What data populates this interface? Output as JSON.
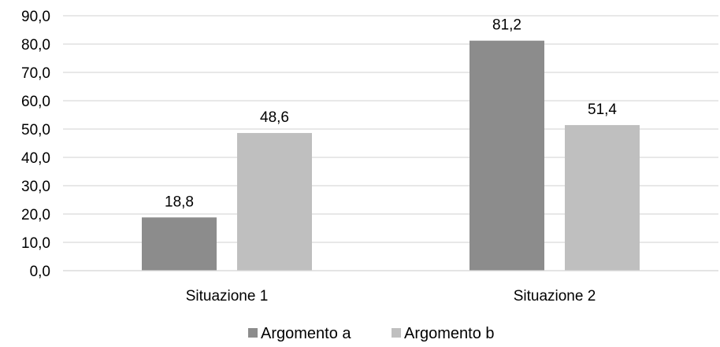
{
  "chart_data": {
    "type": "bar",
    "title": "",
    "xlabel": "",
    "ylabel": "",
    "categories": [
      "Situazione 1",
      "Situazione 2"
    ],
    "series": [
      {
        "name": "Argomento a",
        "values": [
          18.8,
          81.2
        ],
        "labels": [
          "18,8",
          "81,2"
        ],
        "color": "#8c8c8c"
      },
      {
        "name": "Argomento b",
        "values": [
          48.6,
          51.4
        ],
        "labels": [
          "48,6",
          "51,4"
        ],
        "color": "#bfbfbf"
      }
    ],
    "ylim": [
      0,
      90
    ],
    "yticks": [
      0,
      10,
      20,
      30,
      40,
      50,
      60,
      70,
      80,
      90
    ],
    "ytick_labels": [
      "0,0",
      "10,0",
      "20,0",
      "30,0",
      "40,0",
      "50,0",
      "60,0",
      "70,0",
      "80,0",
      "90,0"
    ],
    "grid": true,
    "gridline_color": "#d9d9d9",
    "legend_position": "bottom"
  }
}
